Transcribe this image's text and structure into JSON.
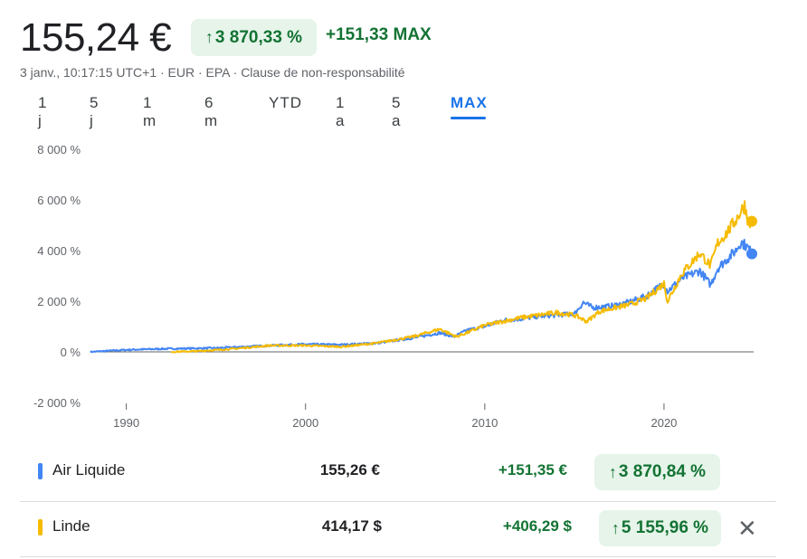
{
  "header": {
    "price": "155,24 €",
    "pct_arrow": "↑",
    "pct_change": "3 870,33 %",
    "abs_change": "+151,33 MAX",
    "meta": "3 janv., 10:17:15 UTC+1 · EUR · EPA · Clause de non-responsabilité"
  },
  "tabs": [
    {
      "label": "1 j",
      "active": false
    },
    {
      "label": "5 j",
      "active": false
    },
    {
      "label": "1 m",
      "active": false
    },
    {
      "label": "6 m",
      "active": false
    },
    {
      "label": "YTD",
      "active": false
    },
    {
      "label": "1 a",
      "active": false
    },
    {
      "label": "5 a",
      "active": false
    },
    {
      "label": "MAX",
      "active": true
    }
  ],
  "colors": {
    "air_liquide": "#4285f4",
    "linde": "#f6bb00",
    "positive": "#137333",
    "positive_bg": "#e6f4ea",
    "active_tab": "#1a73e8"
  },
  "chart_data": {
    "type": "line",
    "xlim": [
      1988,
      2025
    ],
    "ylim": [
      -2000,
      8000
    ],
    "yticks": [
      8000,
      6000,
      4000,
      2000,
      0,
      -2000
    ],
    "ytick_labels": [
      "8 000 %",
      "6 000 %",
      "4 000 %",
      "2 000 %",
      "0 %",
      "-2 000 %"
    ],
    "xticks": [
      1990,
      2000,
      2010,
      2020
    ],
    "xtick_labels": [
      "1990",
      "2000",
      "2010",
      "2020"
    ],
    "baseline": 0,
    "series": [
      {
        "name": "Air Liquide",
        "color": "#4285f4",
        "x": [
          1988,
          1990,
          1992,
          1995,
          1998,
          2000,
          2002,
          2004,
          2006,
          2007.5,
          2008.3,
          2009,
          2010,
          2011,
          2012,
          2013,
          2014,
          2015,
          2015.5,
          2016,
          2017,
          2018,
          2019,
          2020,
          2020.2,
          2021,
          2022,
          2022.6,
          2023,
          2023.5,
          2024,
          2024.3,
          2024.7,
          2024.9
        ],
        "values": [
          0,
          80,
          120,
          150,
          250,
          300,
          280,
          350,
          550,
          750,
          600,
          850,
          1000,
          1250,
          1300,
          1400,
          1450,
          1500,
          1950,
          1750,
          1800,
          1950,
          2200,
          2700,
          2400,
          2900,
          3200,
          2650,
          3300,
          3650,
          4000,
          4350,
          4100,
          3870
        ]
      },
      {
        "name": "Linde",
        "color": "#f6bb00",
        "x": [
          1992.5,
          1994,
          1996,
          1998,
          2000,
          2002,
          2004,
          2006,
          2007.5,
          2008.4,
          2009,
          2010,
          2011,
          2012,
          2013,
          2014,
          2015,
          2015.7,
          2016.4,
          2017,
          2018,
          2019,
          2020,
          2020.2,
          2021,
          2022,
          2022.6,
          2023,
          2023.5,
          2024,
          2024.5,
          2024.75,
          2024.9
        ],
        "values": [
          0,
          30,
          120,
          250,
          250,
          200,
          350,
          600,
          900,
          600,
          750,
          1050,
          1200,
          1350,
          1450,
          1550,
          1450,
          1200,
          1600,
          1700,
          1850,
          2100,
          2700,
          2000,
          3100,
          3900,
          3400,
          4300,
          4700,
          5200,
          5800,
          5000,
          5156
        ]
      }
    ]
  },
  "comparison": [
    {
      "name": "Air Liquide",
      "value": "155,26 €",
      "change": "+151,35 €",
      "pct_arrow": "↑",
      "pct": "3 870,84 %",
      "color": "#4285f4"
    },
    {
      "name": "Linde",
      "value": "414,17 $",
      "change": "+406,29 $",
      "pct_arrow": "↑",
      "pct": "5 155,96 %",
      "color": "#f6bb00",
      "remove_icon": "✕"
    }
  ]
}
